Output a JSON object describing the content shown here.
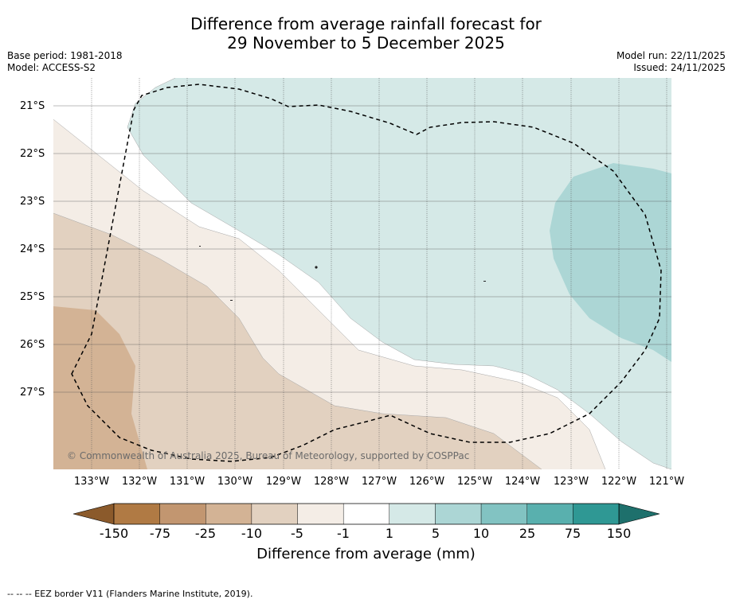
{
  "title": {
    "line1": "Difference from average rainfall forecast for",
    "line2": "29 November to 5 December 2025"
  },
  "meta_left": {
    "base_period": "Base period: 1981-2018",
    "model": "Model: ACCESS-S2"
  },
  "meta_right": {
    "model_run": "Model run: 22/11/2025",
    "issued": "Issued: 24/11/2025"
  },
  "map": {
    "latitude_labels": [
      "21°S",
      "22°S",
      "23°S",
      "24°S",
      "25°S",
      "26°S",
      "27°S"
    ],
    "longitude_labels": [
      "133°W",
      "132°W",
      "131°W",
      "130°W",
      "129°W",
      "128°W",
      "127°W",
      "126°W",
      "125°W",
      "124°W",
      "123°W",
      "122°W",
      "121°W"
    ],
    "copyright": "© Commonwealth of Australia 2025, Bureau of Meteorology, supported by COSPPac"
  },
  "colorbar": {
    "ticks": [
      "-150",
      "-75",
      "-25",
      "-10",
      "-5",
      "-1",
      "1",
      "5",
      "10",
      "25",
      "75",
      "150"
    ],
    "colors": [
      "#8b5a2b",
      "#b07a44",
      "#c29670",
      "#d3b395",
      "#e2d1c0",
      "#f4ede6",
      "#ffffff",
      "#d5e9e7",
      "#acd6d5",
      "#82c3c2",
      "#59b0ae",
      "#2f9894",
      "#1e706c"
    ],
    "label": "Difference from average (mm)"
  },
  "footer": "--  --  -- EEZ border V11 (Flanders Marine Institute, 2019)."
}
